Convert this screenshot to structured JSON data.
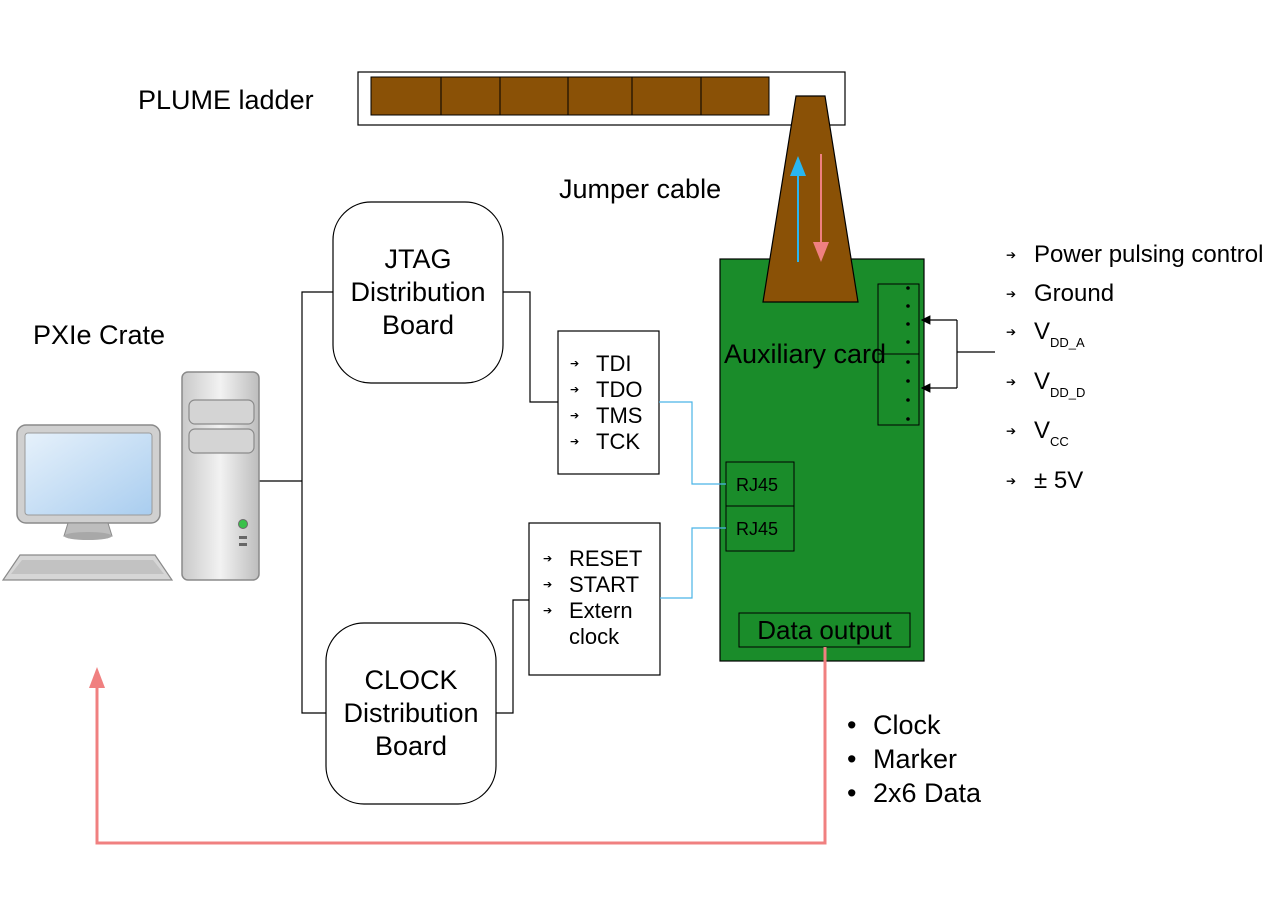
{
  "labels": {
    "plume_ladder": "PLUME ladder",
    "jumper_cable": "Jumper cable",
    "pxie_crate": "PXIe Crate",
    "auxiliary_card": "Auxiliary card",
    "rj45_top": "RJ45",
    "rj45_bottom": "RJ45",
    "data_output": "Data output"
  },
  "boards": {
    "jtag": [
      "JTAG",
      "Distribution",
      "Board"
    ],
    "clock": [
      "CLOCK",
      "Distribution",
      "Board"
    ]
  },
  "jtag_signals": [
    "TDI",
    "TDO",
    "TMS",
    "TCK"
  ],
  "clock_signals": [
    "RESET",
    "START",
    "Extern",
    "clock"
  ],
  "power_lines": [
    {
      "main": "Power pulsing control",
      "sub": ""
    },
    {
      "main": "Ground",
      "sub": ""
    },
    {
      "main": "V",
      "sub": "DD_A"
    },
    {
      "main": "V",
      "sub": "DD_D"
    },
    {
      "main": "V",
      "sub": "CC"
    },
    {
      "main": "± 5V",
      "sub": ""
    }
  ],
  "data_outputs": [
    "Clock",
    "Marker",
    "2x6 Data"
  ],
  "colors": {
    "ladder_chip": "#8a5106",
    "card_green": "#1a8c2a",
    "cable_brown": "#8a5106",
    "arrow_blue": "#29b6f0",
    "arrow_pink": "#f08080",
    "link_blue": "#4ab4e6"
  }
}
